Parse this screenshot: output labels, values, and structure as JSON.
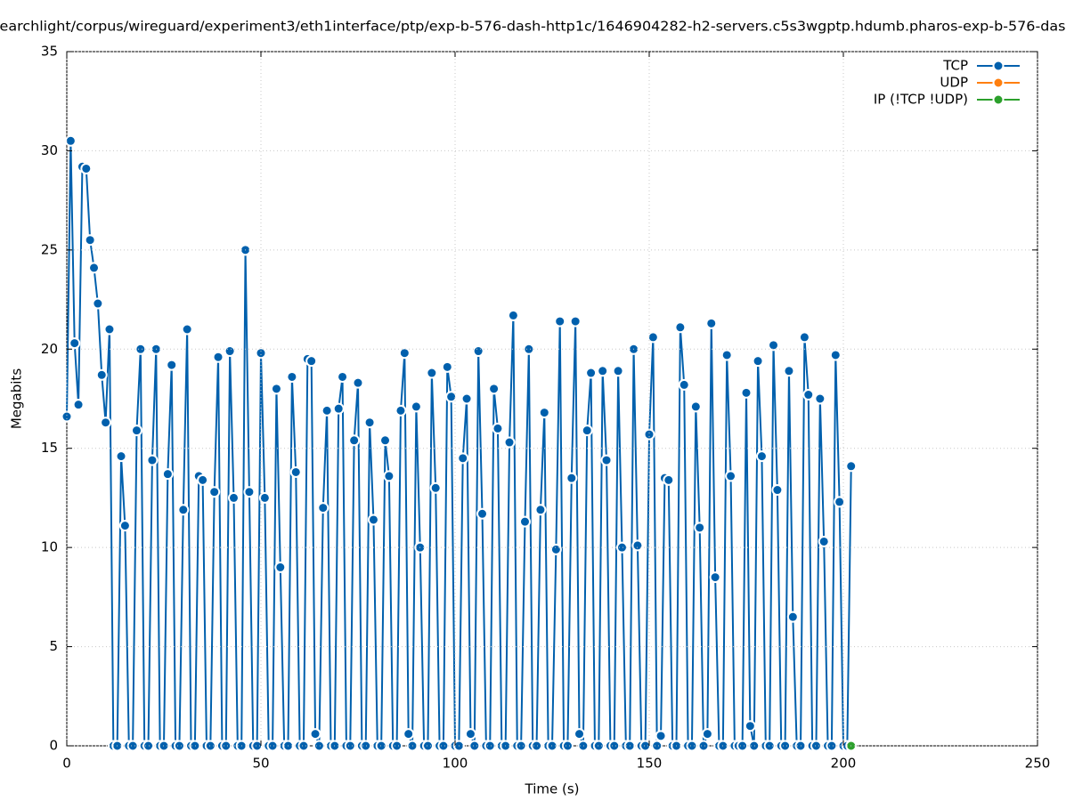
{
  "chart_data": {
    "type": "line",
    "title": "earchlight/corpus/wireguard/experiment3/eth1interface/ptp/exp-b-576-dash-http1c/1646904282-h2-servers.c5s3wgptp.hdumb.pharos-exp-b-576-das",
    "xlabel": "Time (s)",
    "ylabel": "Megabits",
    "xlim": [
      0,
      250
    ],
    "xticks": [
      0,
      50,
      100,
      150,
      200,
      250
    ],
    "ylim": [
      0,
      35
    ],
    "yticks": [
      0,
      5,
      10,
      15,
      20,
      25,
      30,
      35
    ],
    "grid": true,
    "legend": "top-right",
    "x": [
      0,
      1,
      2,
      3,
      4,
      5,
      6,
      7,
      8,
      9,
      10,
      11,
      12,
      13,
      14,
      15,
      16,
      17,
      18,
      19,
      20,
      21,
      22,
      23,
      24,
      25,
      26,
      27,
      28,
      29,
      30,
      31,
      32,
      33,
      34,
      35,
      36,
      37,
      38,
      39,
      40,
      41,
      42,
      43,
      44,
      45,
      46,
      47,
      48,
      49,
      50,
      51,
      52,
      53,
      54,
      55,
      56,
      57,
      58,
      59,
      60,
      61,
      62,
      63,
      64,
      65,
      66,
      67,
      68,
      69,
      70,
      71,
      72,
      73,
      74,
      75,
      76,
      77,
      78,
      79,
      80,
      81,
      82,
      83,
      84,
      85,
      86,
      87,
      88,
      89,
      90,
      91,
      92,
      93,
      94,
      95,
      96,
      97,
      98,
      99,
      100,
      101,
      102,
      103,
      104,
      105,
      106,
      107,
      108,
      109,
      110,
      111,
      112,
      113,
      114,
      115,
      116,
      117,
      118,
      119,
      120,
      121,
      122,
      123,
      124,
      125,
      126,
      127,
      128,
      129,
      130,
      131,
      132,
      133,
      134,
      135,
      136,
      137,
      138,
      139,
      140,
      141,
      142,
      143,
      144,
      145,
      146,
      147,
      148,
      149,
      150,
      151,
      152,
      153,
      154,
      155,
      156,
      157,
      158,
      159,
      160,
      161,
      162,
      163,
      164,
      165,
      166,
      167,
      168,
      169,
      170,
      171,
      172,
      173,
      174,
      175,
      176,
      177,
      178,
      179,
      180,
      181,
      182,
      183,
      184,
      185,
      186,
      187,
      188,
      189,
      190,
      191,
      192,
      193,
      194,
      195,
      196,
      197,
      198,
      199,
      200,
      201,
      202
    ],
    "series": [
      {
        "name": "TCP",
        "color": "#0060ad",
        "values": [
          16.6,
          30.5,
          20.3,
          17.2,
          29.2,
          29.1,
          25.5,
          24.1,
          22.3,
          18.7,
          16.3,
          21.0,
          0,
          0,
          14.6,
          11.1,
          0,
          0,
          15.9,
          20.0,
          0,
          0,
          14.4,
          20.0,
          0,
          0,
          13.7,
          19.2,
          0,
          0,
          11.9,
          21.0,
          0,
          0,
          13.6,
          13.4,
          0,
          0,
          12.8,
          19.6,
          0,
          0,
          19.9,
          12.5,
          0,
          0,
          25.0,
          12.8,
          0,
          0,
          19.8,
          12.5,
          0,
          0,
          18.0,
          9.0,
          0,
          0,
          18.6,
          13.8,
          0,
          0,
          19.5,
          19.4,
          0.6,
          0,
          12.0,
          16.9,
          0,
          0,
          17.0,
          18.6,
          0,
          0,
          15.4,
          18.3,
          0,
          0,
          16.3,
          11.4,
          0,
          0,
          15.4,
          13.6,
          0,
          0,
          16.9,
          19.8,
          0.6,
          0,
          17.1,
          10.0,
          0,
          0,
          18.8,
          13.0,
          0,
          0,
          19.1,
          17.6,
          0,
          0,
          14.5,
          17.5,
          0.6,
          0,
          19.9,
          11.7,
          0,
          0,
          18.0,
          16.0,
          0,
          0,
          15.3,
          21.7,
          0,
          0,
          11.3,
          20.0,
          0,
          0,
          11.9,
          16.8,
          0,
          0,
          9.9,
          21.4,
          0,
          0,
          13.5,
          21.4,
          0.6,
          0,
          15.9,
          18.8,
          0,
          0,
          18.9,
          14.4,
          0,
          0,
          18.9,
          10.0,
          0,
          0,
          20.0,
          10.1,
          0,
          0,
          15.7,
          20.6,
          0,
          0.5,
          13.5,
          13.4,
          0,
          0,
          21.1,
          18.2,
          0,
          0,
          17.1,
          11.0,
          0,
          0.6,
          21.3,
          8.5,
          0,
          0,
          19.7,
          13.6,
          0,
          0,
          0,
          17.8,
          1.0,
          0,
          19.4,
          14.6,
          0,
          0,
          20.2,
          12.9,
          0,
          0,
          18.9,
          6.5,
          0,
          0,
          20.6,
          17.7,
          0,
          0,
          17.5,
          10.3,
          0,
          0,
          19.7,
          12.3,
          0,
          0,
          14.1
        ]
      },
      {
        "name": "UDP",
        "color": "#ff7f0e",
        "x": [],
        "values": []
      },
      {
        "name": "IP (!TCP  !UDP)",
        "color": "#2ca02c",
        "x": [
          202
        ],
        "values": [
          0
        ]
      }
    ]
  }
}
